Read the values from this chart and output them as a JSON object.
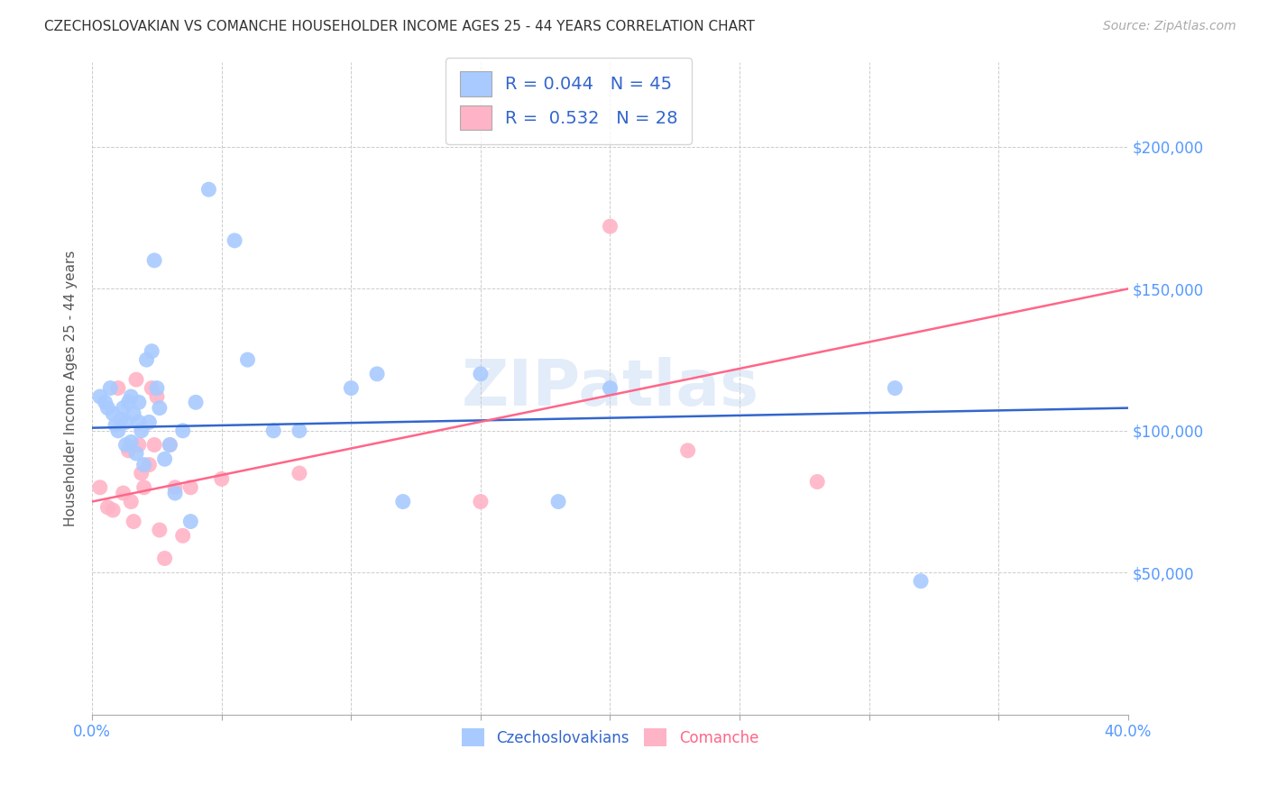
{
  "title": "CZECHOSLOVAKIAN VS COMANCHE HOUSEHOLDER INCOME AGES 25 - 44 YEARS CORRELATION CHART",
  "source": "Source: ZipAtlas.com",
  "ylabel": "Householder Income Ages 25 - 44 years",
  "xlim": [
    0.0,
    0.4
  ],
  "ylim": [
    0,
    230000
  ],
  "yticks": [
    0,
    50000,
    100000,
    150000,
    200000
  ],
  "ytick_labels": [
    "",
    "$50,000",
    "$100,000",
    "$150,000",
    "$200,000"
  ],
  "xticks": [
    0.0,
    0.05,
    0.1,
    0.15,
    0.2,
    0.25,
    0.3,
    0.35,
    0.4
  ],
  "blue_R": 0.044,
  "blue_N": 45,
  "pink_R": 0.532,
  "pink_N": 28,
  "blue_color": "#A8CAFF",
  "pink_color": "#FFB3C6",
  "blue_line_color": "#3366CC",
  "pink_line_color": "#FF6688",
  "axis_color": "#5599FF",
  "watermark": "ZIPatlas",
  "blue_line_x": [
    0.0,
    0.4
  ],
  "blue_line_y": [
    101000,
    108000
  ],
  "pink_line_x": [
    0.0,
    0.4
  ],
  "pink_line_y": [
    75000,
    150000
  ],
  "blue_scatter_x": [
    0.003,
    0.005,
    0.006,
    0.007,
    0.008,
    0.009,
    0.01,
    0.011,
    0.012,
    0.013,
    0.013,
    0.014,
    0.015,
    0.015,
    0.016,
    0.017,
    0.018,
    0.018,
    0.019,
    0.02,
    0.021,
    0.022,
    0.023,
    0.024,
    0.025,
    0.026,
    0.028,
    0.03,
    0.032,
    0.035,
    0.038,
    0.04,
    0.045,
    0.055,
    0.06,
    0.07,
    0.08,
    0.1,
    0.11,
    0.12,
    0.15,
    0.18,
    0.2,
    0.31,
    0.32
  ],
  "blue_scatter_y": [
    112000,
    110000,
    108000,
    115000,
    106000,
    102000,
    100000,
    104000,
    108000,
    95000,
    103000,
    110000,
    112000,
    96000,
    106000,
    92000,
    103000,
    110000,
    100000,
    88000,
    125000,
    103000,
    128000,
    160000,
    115000,
    108000,
    90000,
    95000,
    78000,
    100000,
    68000,
    110000,
    185000,
    167000,
    125000,
    100000,
    100000,
    115000,
    120000,
    75000,
    120000,
    75000,
    115000,
    115000,
    47000
  ],
  "pink_scatter_x": [
    0.003,
    0.006,
    0.008,
    0.01,
    0.012,
    0.014,
    0.015,
    0.016,
    0.017,
    0.018,
    0.019,
    0.02,
    0.022,
    0.023,
    0.024,
    0.025,
    0.026,
    0.028,
    0.03,
    0.032,
    0.035,
    0.038,
    0.05,
    0.08,
    0.15,
    0.2,
    0.23,
    0.28
  ],
  "pink_scatter_y": [
    80000,
    73000,
    72000,
    115000,
    78000,
    93000,
    75000,
    68000,
    118000,
    95000,
    85000,
    80000,
    88000,
    115000,
    95000,
    112000,
    65000,
    55000,
    95000,
    80000,
    63000,
    80000,
    83000,
    85000,
    75000,
    172000,
    93000,
    82000
  ]
}
